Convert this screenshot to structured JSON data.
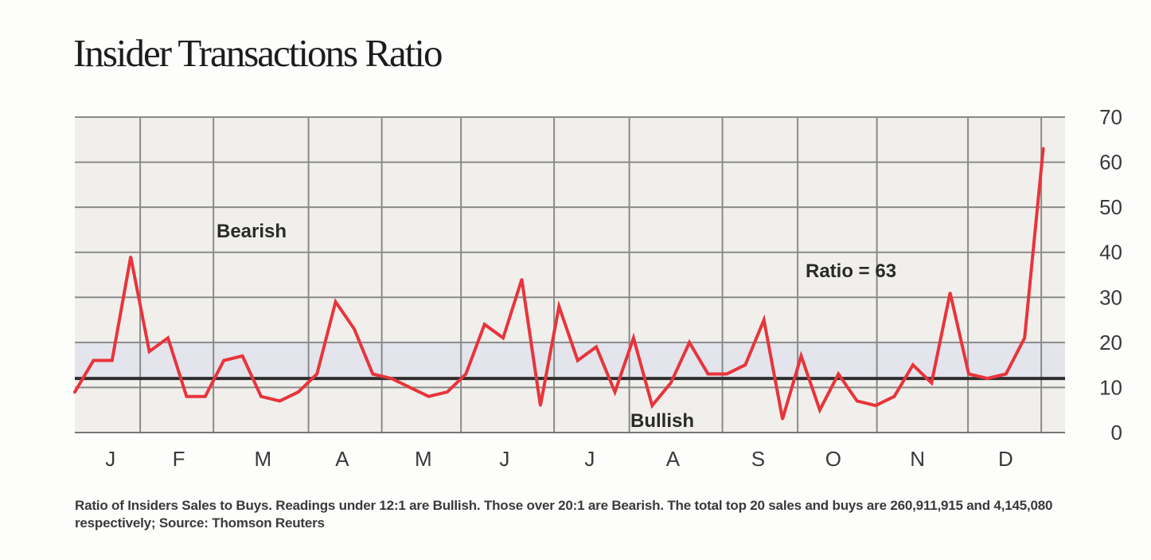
{
  "chart_data": {
    "type": "line",
    "title": "Insider Transactions Ratio",
    "note": "Ratio of Insiders Sales to Buys. Readings under 12:1 are Bullish. Those over 20:1 are Bearish. The total top 20 sales and buys are 260,911,915 and 4,145,080 respectively; Source: Thomson Reuters",
    "ylim": [
      0,
      70
    ],
    "yticks": [
      "0",
      "10",
      "20",
      "30",
      "40",
      "50",
      "60",
      "70"
    ],
    "y_axis_side": "right",
    "grid": true,
    "months": [
      "J",
      "F",
      "M",
      "A",
      "M",
      "J",
      "J",
      "A",
      "S",
      "O",
      "N",
      "D"
    ],
    "bands": {
      "bullish_threshold": 12,
      "bearish_threshold": 20,
      "band_color": "#e3e4ec"
    },
    "annotations": {
      "bearish": "Bearish",
      "bullish": "Bullish",
      "ratio": "Ratio = 63"
    },
    "colors": {
      "line": "#e8343b",
      "threshold": "#2e2e2e",
      "plot_background": "#f0efeb",
      "grid": "#8a8a8a"
    },
    "series": [
      {
        "values": [
          9,
          16,
          16,
          39,
          18,
          21,
          8,
          8,
          16,
          17,
          8,
          7,
          9,
          13,
          29,
          23,
          13,
          12,
          10,
          8,
          9,
          13,
          24,
          21,
          34,
          6,
          28,
          16,
          19,
          9,
          21,
          6,
          11,
          20,
          13,
          13,
          15,
          25,
          3,
          17,
          5,
          13,
          7,
          6,
          8,
          15,
          11,
          31,
          13,
          12,
          13,
          21,
          63
        ]
      }
    ]
  }
}
